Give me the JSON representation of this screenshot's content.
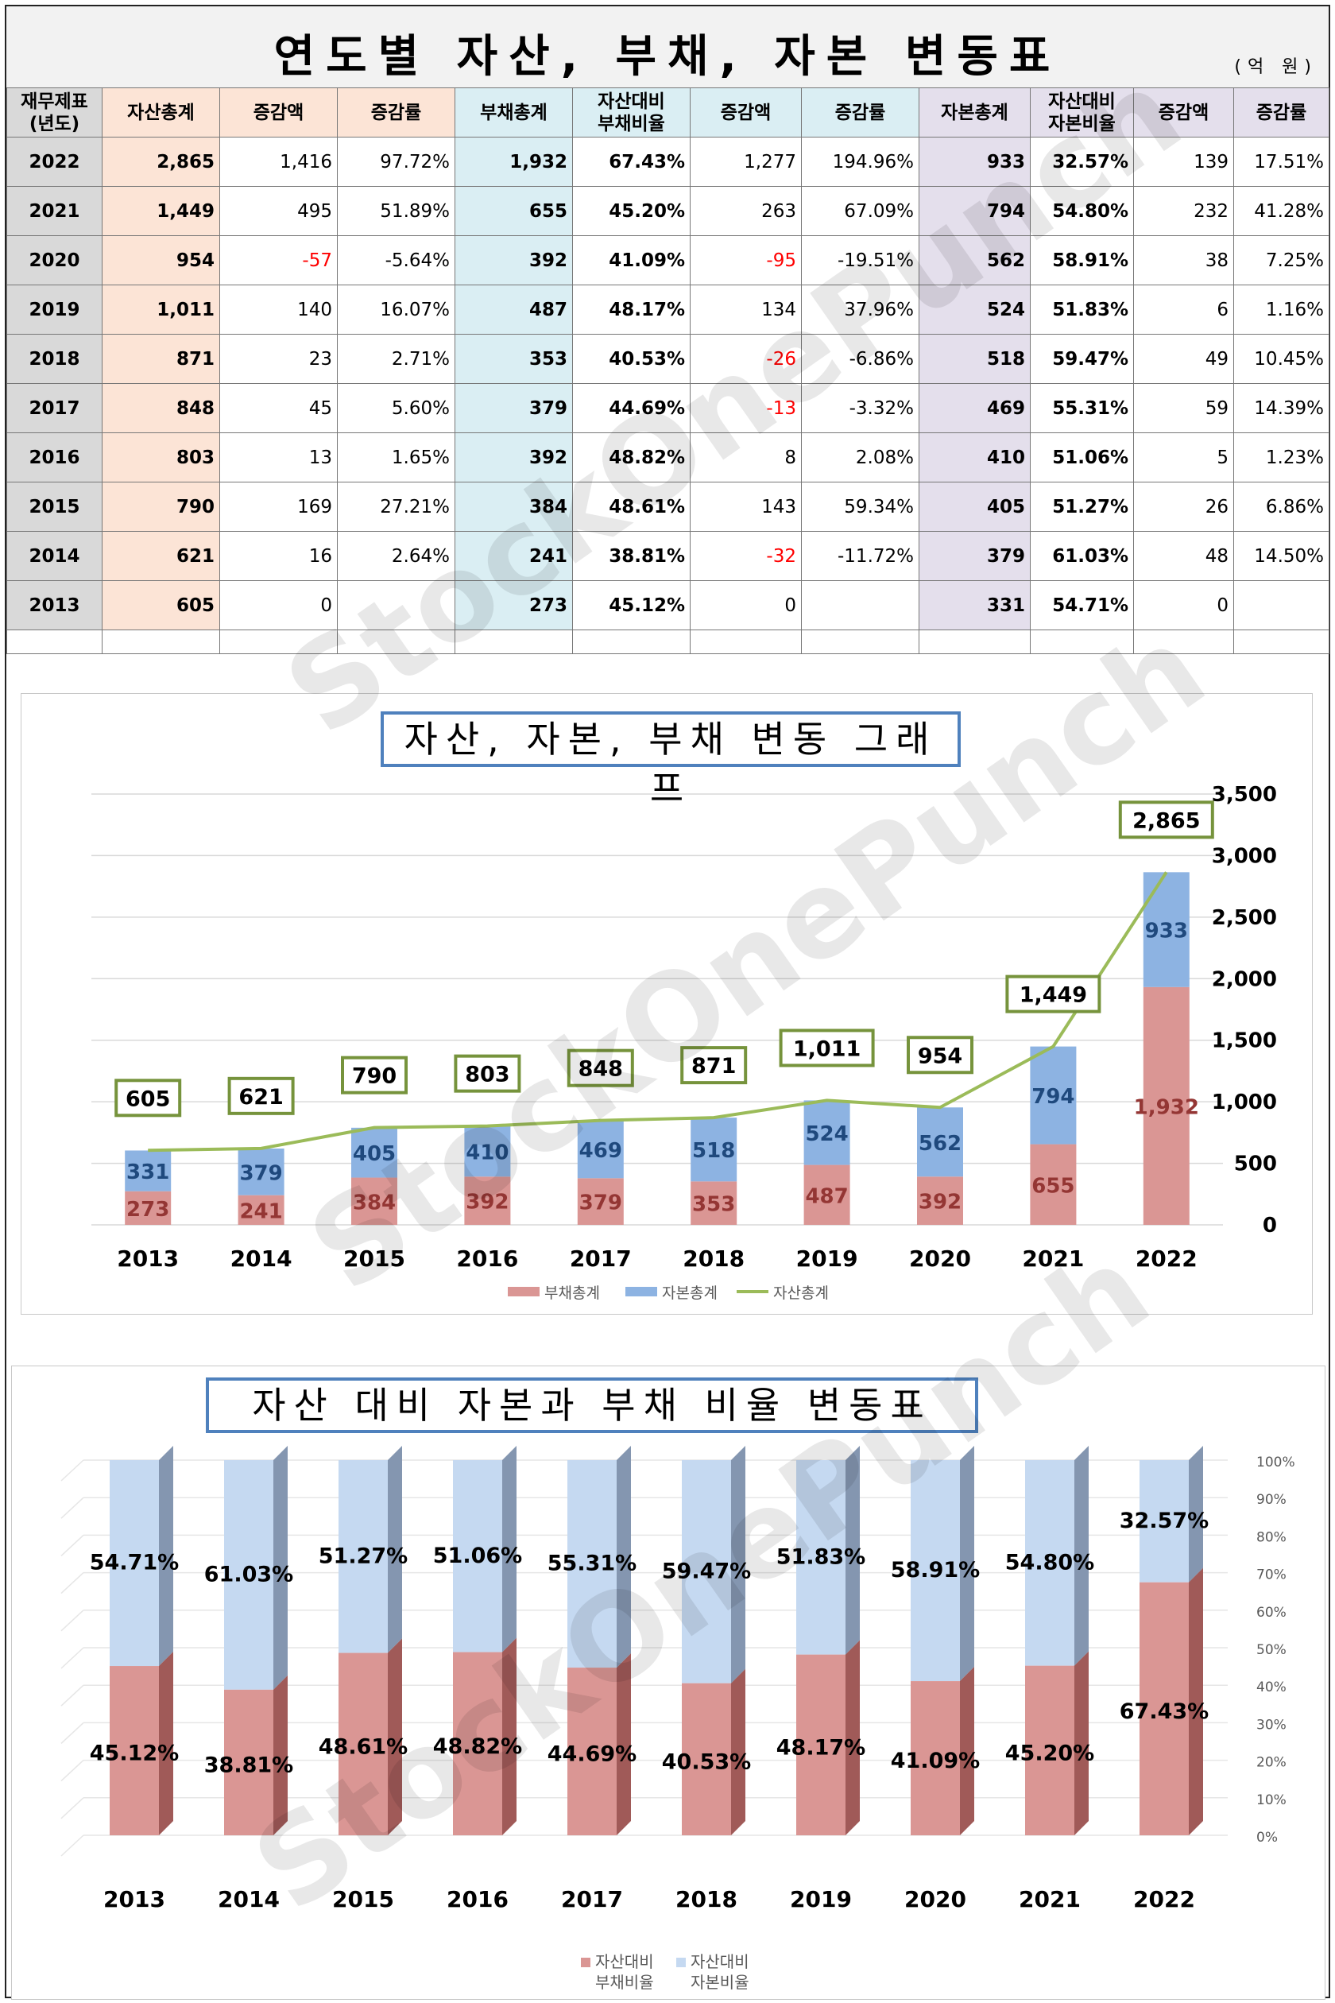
{
  "table": {
    "title": "연도별 자산, 부채, 자본 변동표",
    "unit": "(억 원)",
    "headers": [
      "재무제표\n(년도)",
      "자산총계",
      "증감액",
      "증감률",
      "부채총계",
      "자산대비\n부채비율",
      "증감액",
      "증감률",
      "자본총계",
      "자산대비\n자본비율",
      "증감액",
      "증감률"
    ],
    "rows": [
      [
        "2022",
        "2,865",
        "1,416",
        "97.72%",
        "1,932",
        "67.43%",
        "1,277",
        "194.96%",
        "933",
        "32.57%",
        "139",
        "17.51%"
      ],
      [
        "2021",
        "1,449",
        "495",
        "51.89%",
        "655",
        "45.20%",
        "263",
        "67.09%",
        "794",
        "54.80%",
        "232",
        "41.28%"
      ],
      [
        "2020",
        "954",
        "-57",
        "-5.64%",
        "392",
        "41.09%",
        "-95",
        "-19.51%",
        "562",
        "58.91%",
        "38",
        "7.25%"
      ],
      [
        "2019",
        "1,011",
        "140",
        "16.07%",
        "487",
        "48.17%",
        "134",
        "37.96%",
        "524",
        "51.83%",
        "6",
        "1.16%"
      ],
      [
        "2018",
        "871",
        "23",
        "2.71%",
        "353",
        "40.53%",
        "-26",
        "-6.86%",
        "518",
        "59.47%",
        "49",
        "10.45%"
      ],
      [
        "2017",
        "848",
        "45",
        "5.60%",
        "379",
        "44.69%",
        "-13",
        "-3.32%",
        "469",
        "55.31%",
        "59",
        "14.39%"
      ],
      [
        "2016",
        "803",
        "13",
        "1.65%",
        "392",
        "48.82%",
        "8",
        "2.08%",
        "410",
        "51.06%",
        "5",
        "1.23%"
      ],
      [
        "2015",
        "790",
        "169",
        "27.21%",
        "384",
        "48.61%",
        "143",
        "59.34%",
        "405",
        "51.27%",
        "26",
        "6.86%"
      ],
      [
        "2014",
        "621",
        "16",
        "2.64%",
        "241",
        "38.81%",
        "-32",
        "-11.72%",
        "379",
        "61.03%",
        "48",
        "14.50%"
      ],
      [
        "2013",
        "605",
        "0",
        "",
        "273",
        "45.12%",
        "0",
        "",
        "331",
        "54.71%",
        "0",
        ""
      ]
    ]
  },
  "watermark": "StockOnePunch",
  "colors": {
    "debt": "#da9694",
    "equity": "#8db3e2",
    "asset_line": "#9bbb59",
    "title_border": "#4f81bd",
    "label_border": "#76933c",
    "debt_pct": "#e6b8b7",
    "equity_pct": "#c5d9f1",
    "neg_text": "#ff0000"
  },
  "chart_data": [
    {
      "type": "bar",
      "title": "자산, 자본, 부채 변동 그래프",
      "stacked": true,
      "categories": [
        "2013",
        "2014",
        "2015",
        "2016",
        "2017",
        "2018",
        "2019",
        "2020",
        "2021",
        "2022"
      ],
      "series": [
        {
          "name": "부채총계",
          "type": "bar",
          "values": [
            273,
            241,
            384,
            392,
            379,
            353,
            487,
            392,
            655,
            1932
          ]
        },
        {
          "name": "자본총계",
          "type": "bar",
          "values": [
            331,
            379,
            405,
            410,
            469,
            518,
            524,
            562,
            794,
            933
          ]
        },
        {
          "name": "자산총계",
          "type": "line",
          "values": [
            605,
            621,
            790,
            803,
            848,
            871,
            1011,
            954,
            1449,
            2865
          ]
        }
      ],
      "data_labels": {
        "debt": [
          "273",
          "241",
          "384",
          "392",
          "379",
          "353",
          "487",
          "392",
          "655",
          "1,932"
        ],
        "equity": [
          "331",
          "379",
          "405",
          "410",
          "469",
          "518",
          "524",
          "562",
          "794",
          "933"
        ],
        "asset": [
          "605",
          "621",
          "790",
          "803",
          "848",
          "871",
          "1,011",
          "954",
          "1,449",
          "2,865"
        ]
      },
      "ylim": [
        0,
        3500
      ],
      "yticks": [
        "0",
        "500",
        "1,000",
        "1,500",
        "2,000",
        "2,500",
        "3,000",
        "3,500"
      ],
      "y_axis_side": "right",
      "grid": true,
      "legend_position": "bottom"
    },
    {
      "type": "bar",
      "title": "자산 대비 자본과 부채 비율 변동표",
      "stacked": true,
      "percent": true,
      "categories": [
        "2013",
        "2014",
        "2015",
        "2016",
        "2017",
        "2018",
        "2019",
        "2020",
        "2021",
        "2022"
      ],
      "series": [
        {
          "name": "자산대비\n부채비율",
          "values": [
            45.12,
            38.81,
            48.61,
            48.82,
            44.69,
            40.53,
            48.17,
            41.09,
            45.2,
            67.43
          ]
        },
        {
          "name": "자산대비\n자본비율",
          "values": [
            54.71,
            61.03,
            51.27,
            51.06,
            55.31,
            59.47,
            51.83,
            58.91,
            54.8,
            32.57
          ]
        }
      ],
      "data_labels": {
        "debt": [
          "45.12%",
          "38.81%",
          "48.61%",
          "48.82%",
          "44.69%",
          "40.53%",
          "48.17%",
          "41.09%",
          "45.20%",
          "67.43%"
        ],
        "equity": [
          "54.71%",
          "61.03%",
          "51.27%",
          "51.06%",
          "55.31%",
          "59.47%",
          "51.83%",
          "58.91%",
          "54.80%",
          "32.57%"
        ]
      },
      "ylim": [
        0,
        100
      ],
      "yticks": [
        "0%",
        "10%",
        "20%",
        "30%",
        "40%",
        "50%",
        "60%",
        "70%",
        "80%",
        "90%",
        "100%"
      ],
      "y_axis_side": "right",
      "grid": true,
      "legend_position": "bottom"
    }
  ]
}
